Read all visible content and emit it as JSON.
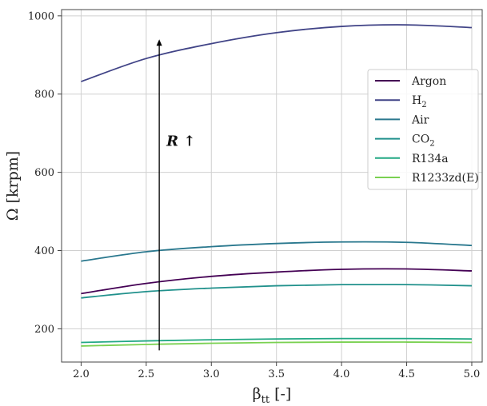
{
  "chart_data": {
    "type": "line",
    "xlabel": "β_tt [-]",
    "ylabel": "Ω [krpm]",
    "xlim": [
      1.85,
      5.08
    ],
    "ylim": [
      115,
      1016
    ],
    "xticks": [
      2.0,
      2.5,
      3.0,
      3.5,
      4.0,
      4.5,
      5.0
    ],
    "xtick_labels": [
      "2.0",
      "2.5",
      "3.0",
      "3.5",
      "4.0",
      "4.5",
      "5.0"
    ],
    "yticks": [
      200,
      400,
      600,
      800,
      1000
    ],
    "ytick_labels": [
      "200",
      "400",
      "600",
      "800",
      "1000"
    ],
    "grid": true,
    "legend_position": "right",
    "x": [
      2.0,
      2.5,
      3.0,
      3.5,
      4.0,
      4.5,
      5.0
    ],
    "series": [
      {
        "name": "Argon",
        "legend_main": "Argon",
        "legend_sub": "",
        "color": "#440154",
        "values": [
          290,
          316,
          334,
          345,
          352,
          353,
          348
        ]
      },
      {
        "name": "H2",
        "legend_main": "H",
        "legend_sub": "2",
        "color": "#414487",
        "values": [
          832,
          891,
          929,
          957,
          973,
          977,
          970
        ]
      },
      {
        "name": "Air",
        "legend_main": "Air",
        "legend_sub": "",
        "color": "#2a788e",
        "values": [
          373,
          397,
          410,
          418,
          422,
          421,
          413
        ]
      },
      {
        "name": "CO2",
        "legend_main": "CO",
        "legend_sub": "2",
        "color": "#21918c",
        "values": [
          279,
          295,
          304,
          310,
          313,
          313,
          310
        ]
      },
      {
        "name": "R134a",
        "legend_main": "R134a",
        "legend_sub": "",
        "color": "#22a884",
        "values": [
          165,
          169,
          172,
          174,
          175,
          175,
          174
        ]
      },
      {
        "name": "R1233zd(E)",
        "legend_main": "R1233zd(E)",
        "legend_sub": "",
        "color": "#7ad151",
        "values": [
          156,
          160,
          163,
          165,
          166,
          166,
          165
        ]
      }
    ],
    "annotation": {
      "text": "R ↑",
      "arrow_x": 2.6,
      "arrow_from_y": 145,
      "arrow_to_y": 940
    }
  }
}
